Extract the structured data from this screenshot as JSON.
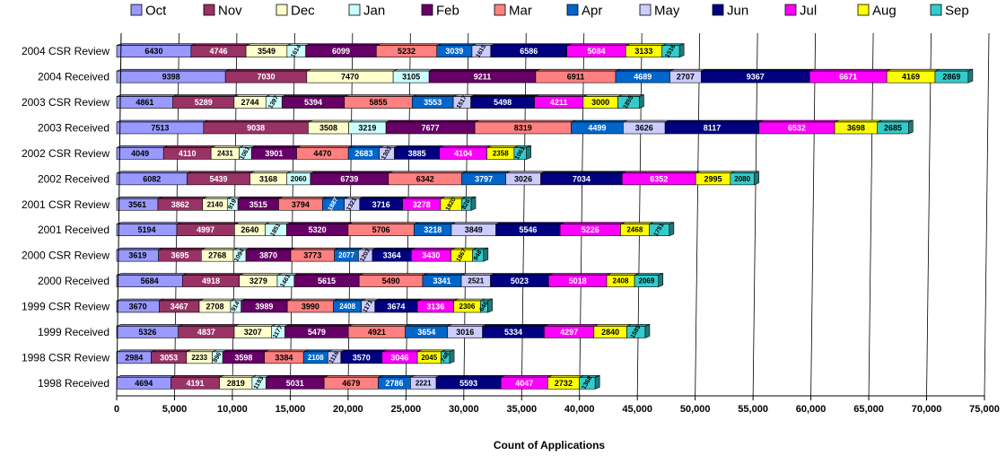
{
  "chart_data": {
    "type": "bar",
    "orientation": "horizontal",
    "stacked": true,
    "xlabel": "Count of Applications",
    "xlim": [
      0,
      75000
    ],
    "xticks": [
      0,
      5000,
      10000,
      15000,
      20000,
      25000,
      30000,
      35000,
      40000,
      45000,
      50000,
      55000,
      60000,
      65000,
      70000,
      75000
    ],
    "xtick_labels": [
      "0",
      "5,000",
      "10,000",
      "15,000",
      "20,000",
      "25,000",
      "30,000",
      "35,000",
      "40,000",
      "45,000",
      "50,000",
      "55,000",
      "60,000",
      "65,000",
      "70,000",
      "75,000"
    ],
    "grid": "vertical",
    "legend": "top",
    "categories": [
      "2004 CSR Review",
      "2004 Received",
      "2003 CSR Review",
      "2003 Received",
      "2002 CSR Review",
      "2002 Received",
      "2001 CSR Review",
      "2001 Received",
      "2000 CSR Review",
      "2000 Received",
      "1999 CSR Review",
      "1999 Received",
      "1998 CSR Review",
      "1998 Received"
    ],
    "series": [
      {
        "name": "Oct",
        "color": "#9999FF",
        "values": [
          6430,
          9398,
          4861,
          7513,
          4049,
          6082,
          3561,
          5194,
          3619,
          5684,
          3670,
          5326,
          2984,
          4694
        ]
      },
      {
        "name": "Nov",
        "color": "#993366",
        "values": [
          4746,
          7030,
          5289,
          9038,
          4110,
          5439,
          3862,
          4997,
          3695,
          4918,
          3467,
          4837,
          3053,
          4191
        ]
      },
      {
        "name": "Dec",
        "color": "#FFFFCC",
        "values": [
          3549,
          7470,
          2744,
          3508,
          2431,
          3168,
          2140,
          2640,
          2768,
          3279,
          2708,
          3207,
          2233,
          2819
        ]
      },
      {
        "name": "Jan",
        "color": "#CCFFFF",
        "values": [
          1614,
          3105,
          1397,
          3219,
          1061,
          2060,
          919,
          1851,
          1094,
          1461,
          914,
          1177,
          896,
          1193
        ]
      },
      {
        "name": "Feb",
        "color": "#660066",
        "values": [
          6099,
          9211,
          5394,
          7677,
          3901,
          6739,
          3515,
          5320,
          3870,
          5615,
          3989,
          5479,
          3598,
          5031
        ]
      },
      {
        "name": "Mar",
        "color": "#FF8080",
        "values": [
          5232,
          6911,
          5855,
          8319,
          4470,
          6342,
          3794,
          5706,
          3773,
          5490,
          3990,
          4921,
          3384,
          4679
        ]
      },
      {
        "name": "Apr",
        "color": "#0066CC",
        "values": [
          3039,
          4689,
          3553,
          4499,
          2683,
          3797,
          1887,
          3218,
          2077,
          3341,
          2408,
          3654,
          2108,
          2786
        ]
      },
      {
        "name": "May",
        "color": "#CCCCFF",
        "values": [
          1615,
          2707,
          1517,
          3626,
          1303,
          3026,
          1321,
          3849,
          1203,
          2521,
          1171,
          3016,
          1116,
          2221
        ]
      },
      {
        "name": "Jun",
        "color": "#000080",
        "values": [
          6586,
          9367,
          5498,
          8117,
          3885,
          7034,
          3716,
          5546,
          3364,
          5023,
          3674,
          5334,
          3570,
          5593
        ]
      },
      {
        "name": "Jul",
        "color": "#FF00FF",
        "values": [
          5084,
          6671,
          4211,
          6532,
          4104,
          6352,
          3278,
          5226,
          3430,
          5018,
          3136,
          4297,
          3046,
          4047
        ]
      },
      {
        "name": "Aug",
        "color": "#FFFF00",
        "values": [
          3133,
          4169,
          3000,
          3698,
          2358,
          2995,
          1820,
          2468,
          1867,
          2408,
          2306,
          2840,
          2045,
          2732
        ]
      },
      {
        "name": "Sep",
        "color": "#33CCCC",
        "values": [
          1516,
          2869,
          1855,
          2685,
          1061,
          2080,
          826,
          1751,
          948,
          2069,
          646,
          1589,
          748,
          1368
        ]
      }
    ]
  }
}
